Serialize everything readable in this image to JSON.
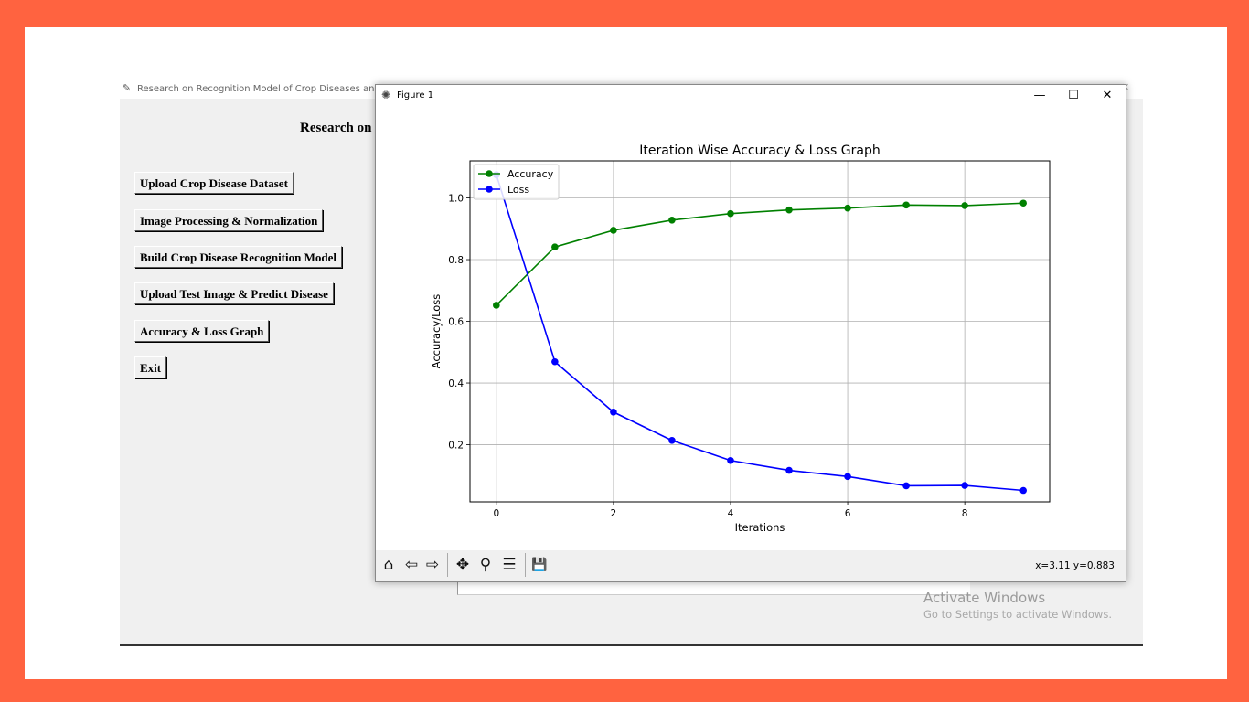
{
  "background_window": {
    "title": "Research on Recognition Model of Crop Diseases and Insect",
    "heading": "Research on",
    "close_glyph": "✕",
    "buttons": [
      "Upload Crop Disease Dataset",
      "Image Processing & Normalization",
      "Build Crop Disease Recognition Model",
      "Upload Test Image & Predict Disease",
      "Accuracy & Loss Graph",
      "Exit"
    ]
  },
  "watermark": {
    "title": "Activate Windows",
    "subtitle": "Go to Settings to activate Windows."
  },
  "figure_window": {
    "title": "Figure 1",
    "minimize": "—",
    "maximize": "☐",
    "close": "✕",
    "coords": "x=3.11 y=0.883",
    "toolbar": {
      "home": "⌂",
      "back": "⇦",
      "forward": "⇨",
      "pan": "✥",
      "zoom": "⚲",
      "configure": "☰",
      "save": "💾"
    }
  },
  "chart_data": {
    "type": "line",
    "title": "Iteration Wise Accuracy & Loss Graph",
    "xlabel": "Iterations",
    "ylabel": "Accuracy/Loss",
    "x": [
      0,
      1,
      2,
      3,
      4,
      5,
      6,
      7,
      8,
      9
    ],
    "xlim": [
      -0.45,
      9.45
    ],
    "ylim": [
      0.015,
      1.12
    ],
    "xticks": [
      "0",
      "2",
      "4",
      "6",
      "8"
    ],
    "yticks": [
      "0.2",
      "0.4",
      "0.6",
      "0.8",
      "1.0"
    ],
    "grid": true,
    "legend_position": "top-left",
    "series": [
      {
        "name": "Accuracy",
        "color": "#008000",
        "values": [
          0.652,
          0.841,
          0.895,
          0.928,
          0.949,
          0.961,
          0.967,
          0.977,
          0.975,
          0.983
        ]
      },
      {
        "name": "Loss",
        "color": "#0000ff",
        "values": [
          1.075,
          0.469,
          0.306,
          0.214,
          0.149,
          0.117,
          0.097,
          0.067,
          0.068,
          0.052
        ]
      }
    ]
  }
}
